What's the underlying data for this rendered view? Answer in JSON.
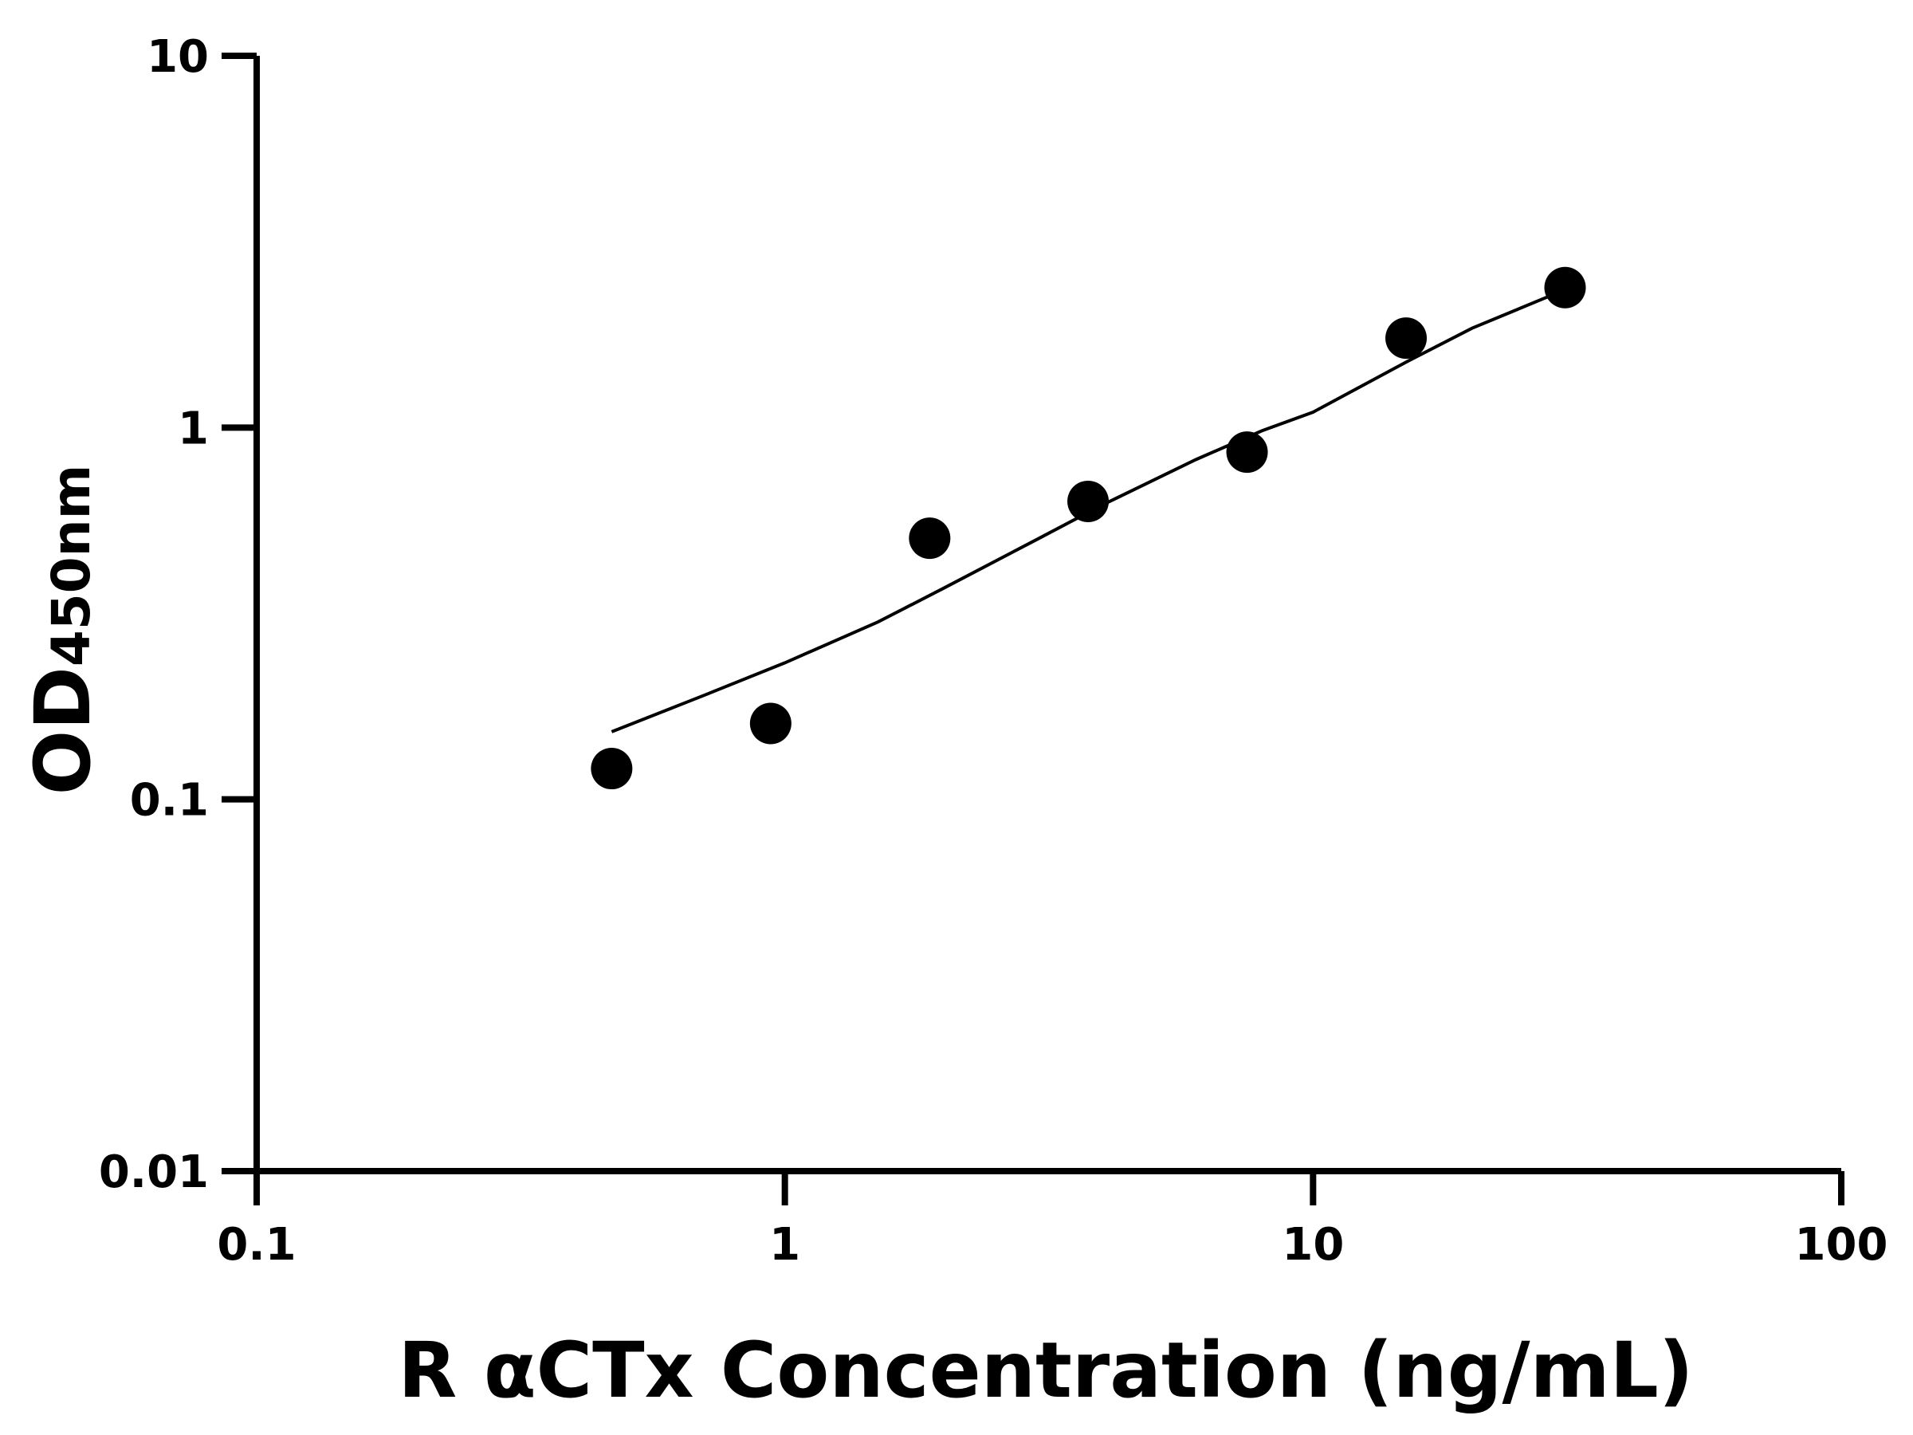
{
  "chart_data": {
    "type": "scatter",
    "xlabel": "R αCTx Concentration (ng/mL)",
    "ylabel_main": "OD",
    "ylabel_sub": "450nm",
    "xscale": "log",
    "yscale": "log",
    "xlim": [
      0.1,
      100
    ],
    "ylim": [
      0.01,
      10
    ],
    "xticks": [
      "0.1",
      "1",
      "10",
      "100"
    ],
    "yticks": [
      "0.01",
      "0.1",
      "1",
      "10"
    ],
    "grid": false,
    "series": [
      {
        "x": [
          0.47,
          0.94,
          1.88,
          3.75,
          7.5,
          15,
          30
        ],
        "y": [
          0.121,
          0.16,
          0.504,
          0.633,
          0.859,
          1.74,
          2.38
        ]
      }
    ],
    "fit_curve": {
      "x": [
        0.47,
        0.7,
        1.0,
        1.5,
        2.0,
        3.0,
        4.0,
        6.0,
        8.0,
        10,
        15,
        20,
        30
      ],
      "y": [
        0.152,
        0.19,
        0.233,
        0.3,
        0.37,
        0.5,
        0.62,
        0.82,
        0.98,
        1.1,
        1.5,
        1.85,
        2.35
      ]
    },
    "colors": {
      "points": "#000000",
      "curve": "#000000",
      "axes": "#000000"
    }
  }
}
